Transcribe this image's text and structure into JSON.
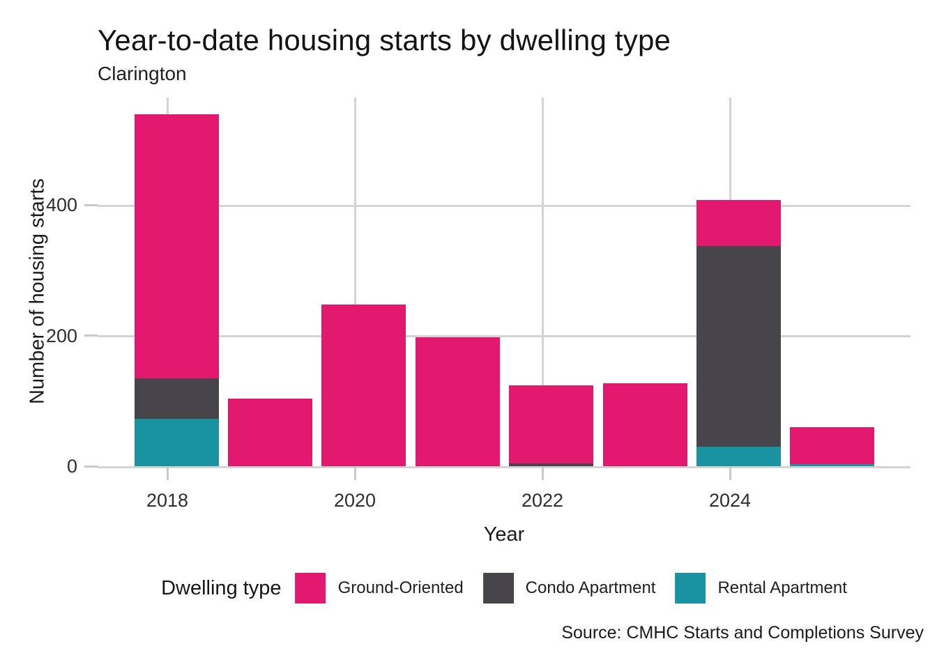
{
  "header": {
    "title": "Year-to-date housing starts by dwelling type",
    "subtitle": "Clarington"
  },
  "chart_data": {
    "type": "bar",
    "stacked": true,
    "title": "Year-to-date housing starts by dwelling type",
    "subtitle": "Clarington",
    "xlabel": "Year",
    "ylabel": "Number of housing starts",
    "categories": [
      "2018",
      "2019",
      "2020",
      "2021",
      "2022",
      "2023",
      "2024",
      "2025"
    ],
    "series": [
      {
        "name": "Ground-Oriented",
        "color": "#e2196e",
        "values": [
          404,
          104,
          248,
          198,
          120,
          127,
          70,
          57
        ]
      },
      {
        "name": "Condo Apartment",
        "color": "#474449",
        "values": [
          62,
          0,
          0,
          0,
          4,
          0,
          308,
          0
        ]
      },
      {
        "name": "Rental Apartment",
        "color": "#1a93a0",
        "values": [
          73,
          0,
          0,
          0,
          0,
          0,
          30,
          3
        ]
      }
    ],
    "stack_bottom_to_top": [
      "Rental Apartment",
      "Condo Apartment",
      "Ground-Oriented"
    ],
    "totals": [
      539,
      104,
      248,
      198,
      124,
      127,
      408,
      60
    ],
    "y_ticks": [
      0,
      200,
      400
    ],
    "x_ticks": [
      "2018",
      "2020",
      "2022",
      "2024"
    ],
    "ylim": [
      0,
      566
    ],
    "grid": "major-only",
    "gridline_color": "#d4d4d4",
    "legend_position": "bottom"
  },
  "legend": {
    "title": "Dwelling type",
    "items": [
      {
        "label": "Ground-Oriented",
        "color": "#e2196e"
      },
      {
        "label": "Condo Apartment",
        "color": "#474449"
      },
      {
        "label": "Rental Apartment",
        "color": "#1a93a0"
      }
    ]
  },
  "footer": {
    "source": "Source: CMHC Starts and Completions Survey"
  }
}
